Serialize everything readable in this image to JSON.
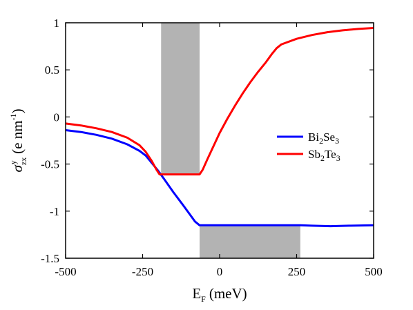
{
  "chart_data": {
    "type": "line",
    "xlabel": {
      "main": "E",
      "sub": "F",
      "unit": "(meV)"
    },
    "ylabel": {
      "main": "σ",
      "sup": "y",
      "sub": "zx",
      "unit_prefix": "(e nm",
      "unit_exp": "-1",
      "unit_suffix": ")"
    },
    "xlim": [
      -500,
      500
    ],
    "ylim": [
      -1.5,
      1
    ],
    "xticks": [
      -500,
      -250,
      0,
      250,
      500
    ],
    "xtick_labels": [
      "-500",
      "-250",
      "0",
      "250",
      "500"
    ],
    "yticks": [
      1,
      0.5,
      0,
      -0.5,
      -1,
      -1.5
    ],
    "ytick_labels": [
      "1",
      "0.5",
      "0",
      "-0.5",
      "-1",
      "-1.5"
    ],
    "grid": false,
    "legend_position": "right",
    "shaded_regions": [
      {
        "x": [
          -190,
          -65
        ],
        "y": [
          -0.61,
          1
        ],
        "color": "#b3b3b3"
      },
      {
        "x": [
          -65,
          262
        ],
        "y": [
          -1.5,
          -1.15
        ],
        "color": "#b3b3b3"
      }
    ],
    "series": [
      {
        "name": "Bi2Se3",
        "label_parts": [
          [
            "Bi",
            ""
          ],
          [
            "2",
            "sub"
          ],
          [
            "Se",
            ""
          ],
          [
            "3",
            "sub"
          ]
        ],
        "color": "#0000ff",
        "points": [
          [
            -500,
            -0.14
          ],
          [
            -450,
            -0.16
          ],
          [
            -400,
            -0.19
          ],
          [
            -350,
            -0.23
          ],
          [
            -300,
            -0.29
          ],
          [
            -260,
            -0.36
          ],
          [
            -240,
            -0.41
          ],
          [
            -220,
            -0.49
          ],
          [
            -200,
            -0.57
          ],
          [
            -180,
            -0.66
          ],
          [
            -150,
            -0.8
          ],
          [
            -120,
            -0.93
          ],
          [
            -100,
            -1.02
          ],
          [
            -80,
            -1.11
          ],
          [
            -65,
            -1.15
          ],
          [
            0,
            -1.15
          ],
          [
            100,
            -1.15
          ],
          [
            200,
            -1.15
          ],
          [
            262,
            -1.15
          ],
          [
            300,
            -1.155
          ],
          [
            360,
            -1.16
          ],
          [
            420,
            -1.155
          ],
          [
            500,
            -1.15
          ]
        ]
      },
      {
        "name": "Sb2Te3",
        "label_parts": [
          [
            "Sb",
            ""
          ],
          [
            "2",
            "sub"
          ],
          [
            "Te",
            ""
          ],
          [
            "3",
            "sub"
          ]
        ],
        "color": "#ff0000",
        "points": [
          [
            -500,
            -0.07
          ],
          [
            -450,
            -0.09
          ],
          [
            -400,
            -0.12
          ],
          [
            -350,
            -0.16
          ],
          [
            -300,
            -0.22
          ],
          [
            -260,
            -0.3
          ],
          [
            -240,
            -0.37
          ],
          [
            -220,
            -0.47
          ],
          [
            -205,
            -0.56
          ],
          [
            -195,
            -0.61
          ],
          [
            -150,
            -0.61
          ],
          [
            -100,
            -0.61
          ],
          [
            -65,
            -0.61
          ],
          [
            -55,
            -0.56
          ],
          [
            -40,
            -0.45
          ],
          [
            -20,
            -0.31
          ],
          [
            0,
            -0.17
          ],
          [
            25,
            -0.02
          ],
          [
            50,
            0.12
          ],
          [
            75,
            0.25
          ],
          [
            100,
            0.37
          ],
          [
            125,
            0.48
          ],
          [
            150,
            0.58
          ],
          [
            170,
            0.67
          ],
          [
            185,
            0.73
          ],
          [
            200,
            0.77
          ],
          [
            250,
            0.83
          ],
          [
            300,
            0.87
          ],
          [
            350,
            0.9
          ],
          [
            400,
            0.92
          ],
          [
            450,
            0.935
          ],
          [
            500,
            0.945
          ]
        ]
      }
    ]
  }
}
